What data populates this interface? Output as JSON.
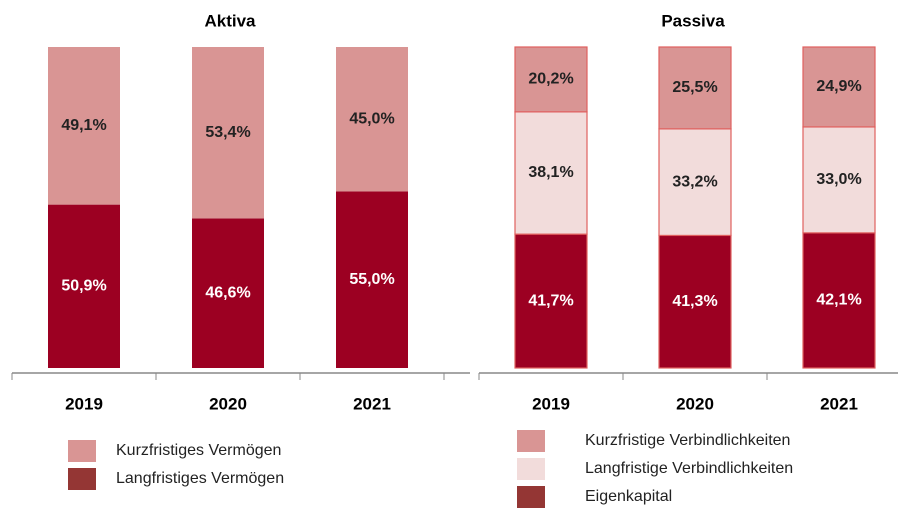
{
  "chart_data": [
    {
      "type": "bar",
      "stacked": true,
      "title": "Aktiva",
      "categories": [
        "2019",
        "2020",
        "2021"
      ],
      "ylim": [
        0,
        100
      ],
      "series": [
        {
          "name": "Langfristiges Vermögen",
          "color": "#9c0022",
          "values": [
            50.9,
            46.6,
            55.0
          ],
          "value_labels": [
            "50,9%",
            "46,6%",
            "55,0%"
          ]
        },
        {
          "name": "Kurzfristiges Vermögen",
          "color": "#d99594",
          "values": [
            49.1,
            53.4,
            45.0
          ],
          "value_labels": [
            "49,1%",
            "53,4%",
            "45,0%"
          ]
        }
      ]
    },
    {
      "type": "bar",
      "stacked": true,
      "title": "Passiva",
      "categories": [
        "2019",
        "2020",
        "2021"
      ],
      "ylim": [
        0,
        100
      ],
      "series": [
        {
          "name": "Eigenkapital",
          "color": "#9c0022",
          "values": [
            41.7,
            41.3,
            42.1
          ],
          "value_labels": [
            "41,7%",
            "41,3%",
            "42,1%"
          ]
        },
        {
          "name": "Langfristige Verbindlichkeiten",
          "color": "#f2dcdb",
          "values": [
            38.1,
            33.2,
            33.0
          ],
          "value_labels": [
            "38,1%",
            "33,2%",
            "33,0%"
          ]
        },
        {
          "name": "Kurzfristige Verbindlichkeiten",
          "color": "#d99594",
          "values": [
            20.2,
            25.5,
            24.9
          ],
          "value_labels": [
            "20,2%",
            "25,5%",
            "24,9%"
          ]
        }
      ]
    }
  ]
}
